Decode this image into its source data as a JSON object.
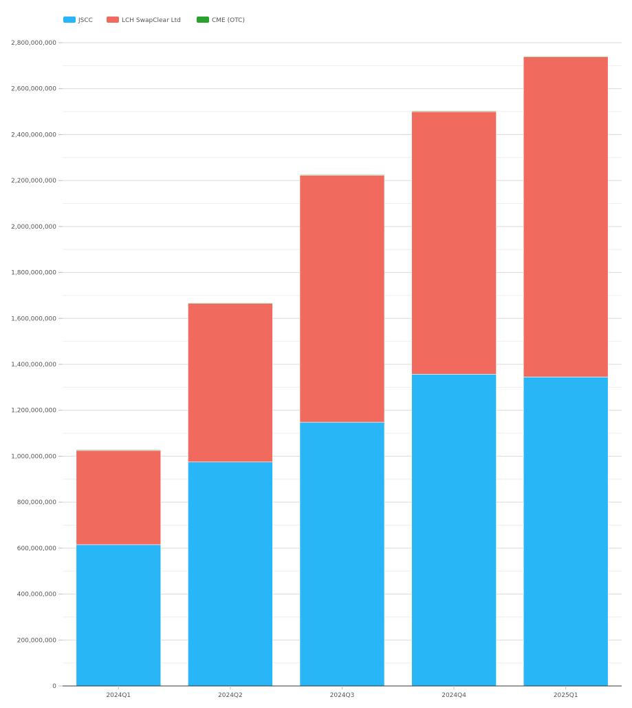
{
  "chart_data": {
    "type": "bar",
    "stacked": true,
    "categories": [
      "2024Q1",
      "2024Q2",
      "2024Q3",
      "2024Q4",
      "2025Q1"
    ],
    "series": [
      {
        "name": "JSCC",
        "color": "#29b6f6",
        "values": [
          615000000,
          975000000,
          1148000000,
          1357000000,
          1345000000
        ]
      },
      {
        "name": "LCH SwapClear Ltd",
        "color": "#f06b5e",
        "values": [
          410000000,
          690000000,
          1075000000,
          1143000000,
          1393000000
        ]
      },
      {
        "name": "CME (OTC)",
        "color": "#2ca02c",
        "values": [
          3000000,
          3000000,
          3000000,
          3000000,
          3000000
        ]
      }
    ],
    "y_ticks": [
      "0",
      "200,000,000",
      "400,000,000",
      "600,000,000",
      "800,000,000",
      "1,000,000,000",
      "1,200,000,000",
      "1,400,000,000",
      "1,600,000,000",
      "1,800,000,000",
      "2,000,000,000",
      "2,200,000,000",
      "2,400,000,000",
      "2,600,000,000",
      "2,800,000,000"
    ],
    "ylim": [
      0,
      2800000000
    ],
    "grid": true,
    "legend_position": "top-left",
    "title": "",
    "xlabel": "",
    "ylabel": ""
  }
}
